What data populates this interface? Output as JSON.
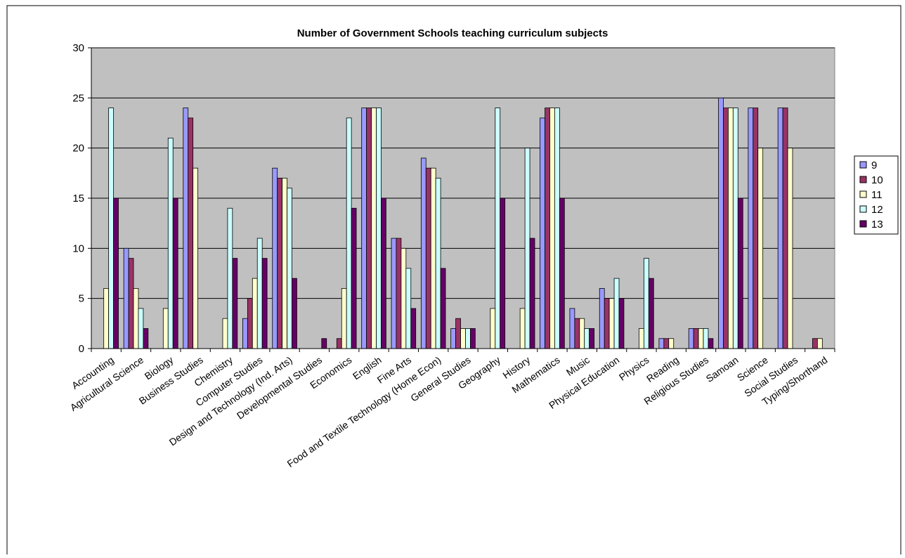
{
  "chart_data": {
    "type": "bar",
    "title": "Number of Government Schools teaching curriculum subjects",
    "xlabel": "",
    "ylabel": "",
    "ylim": [
      0,
      30
    ],
    "yticks": [
      0,
      5,
      10,
      15,
      20,
      25,
      30
    ],
    "grid": true,
    "legend_position": "right",
    "plot_background": "#c0c0c0",
    "categories": [
      "Accounting",
      "Agricultural Science",
      "Biology",
      "Business Studies",
      "Chemistry",
      "Computer Studies",
      "Design and Technology (Ind. Arts)",
      "Developmental Studies",
      "Economics",
      "English",
      "Fine Arts",
      "Food and Textile Technology (Home Econ)",
      "General Studies",
      "Geography",
      "History",
      "Mathematics",
      "Music",
      "Physical Education",
      "Physics",
      "Reading",
      "Religious Studies",
      "Samoan",
      "Science",
      "Social Studies",
      "Typing/Shorthand"
    ],
    "series": [
      {
        "name": "9",
        "color": "#9999ff",
        "values": [
          0,
          10,
          0,
          24,
          0,
          3,
          18,
          0,
          0,
          24,
          11,
          19,
          2,
          0,
          0,
          23,
          4,
          6,
          0,
          1,
          2,
          25,
          24,
          24,
          0
        ]
      },
      {
        "name": "10",
        "color": "#993366",
        "values": [
          0,
          9,
          0,
          23,
          0,
          5,
          17,
          0,
          1,
          24,
          11,
          18,
          3,
          0,
          0,
          24,
          3,
          5,
          0,
          1,
          2,
          24,
          24,
          24,
          1
        ]
      },
      {
        "name": "11",
        "color": "#ffffcc",
        "values": [
          6,
          6,
          4,
          18,
          3,
          7,
          17,
          0,
          6,
          24,
          10,
          18,
          2,
          4,
          4,
          24,
          3,
          5,
          2,
          1,
          2,
          24,
          20,
          20,
          1
        ]
      },
      {
        "name": "12",
        "color": "#ccffff",
        "values": [
          24,
          4,
          21,
          0,
          14,
          11,
          16,
          0,
          23,
          24,
          8,
          17,
          2,
          24,
          20,
          24,
          2,
          7,
          9,
          0,
          2,
          24,
          0,
          0,
          0
        ]
      },
      {
        "name": "13",
        "color": "#660066",
        "values": [
          15,
          2,
          15,
          0,
          9,
          9,
          7,
          1,
          14,
          15,
          4,
          8,
          2,
          15,
          11,
          15,
          2,
          5,
          7,
          0,
          1,
          15,
          0,
          0,
          0
        ]
      }
    ]
  }
}
